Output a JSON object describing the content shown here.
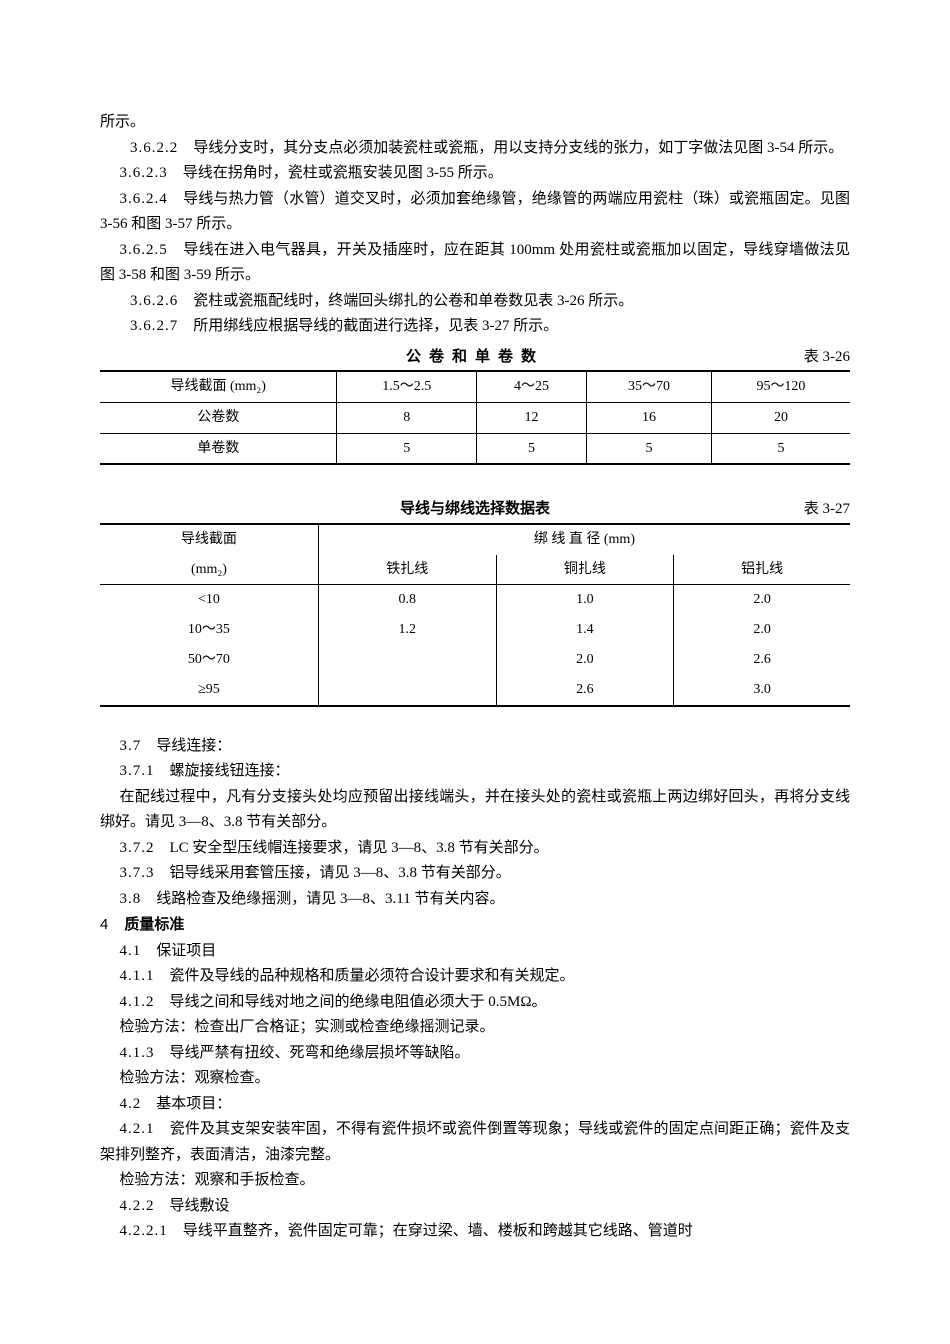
{
  "intro": {
    "p0": "所示。",
    "p1_num": "3.6.2.2",
    "p1": "　导线分支时，其分支点必须加装瓷柱或瓷瓶，用以支持分支线的张力，如丁字做法见图 3-54 所示。",
    "p2_num": "3.6.2.3",
    "p2": "　导线在拐角时，瓷柱或瓷瓶安装见图 3-55 所示。",
    "p3_num": "3.6.2.4",
    "p3": "　导线与热力管（水管）道交叉时，必须加套绝缘管，绝缘管的两端应用瓷柱（珠）或瓷瓶固定。见图 3-56 和图 3-57 所示。",
    "p4_num": "3.6.2.5",
    "p4": "　导线在进入电气器具，开关及插座时，应在距其 100mm 处用瓷柱或瓷瓶加以固定，导线穿墙做法见图 3-58 和图 3-59 所示。",
    "p5_num": "3.6.2.6",
    "p5": "　瓷柱或瓷瓶配线时，终端回头绑扎的公卷和单卷数见表 3-26 所示。",
    "p6_num": "3.6.2.7",
    "p6": "　所用绑线应根据导线的截面进行选择，见表 3-27 所示。"
  },
  "table1": {
    "title": "公卷和单卷数",
    "label": "表 3-26",
    "headers": [
      "导线截面 (mm₂)",
      "1.5～2.5",
      "4～25",
      "35～70",
      "95～120"
    ],
    "rows": [
      [
        "公卷数",
        "8",
        "12",
        "16",
        "20"
      ],
      [
        "单卷数",
        "5",
        "5",
        "5",
        "5"
      ]
    ]
  },
  "table2": {
    "title": "导线与绑线选择数据表",
    "label": "表 3-27",
    "h1": "导线截面",
    "h1b": "(mm₂)",
    "h2": "绑 线 直 径 (mm)",
    "sub_headers": [
      "铁扎线",
      "铜扎线",
      "铝扎线"
    ],
    "rows": [
      [
        "<10",
        "0.8",
        "1.0",
        "2.0"
      ],
      [
        "10～35",
        "1.2",
        "1.4",
        "2.0"
      ],
      [
        "50～70",
        "",
        "2.0",
        "2.6"
      ],
      [
        "≥95",
        "",
        "2.6",
        "3.0"
      ]
    ]
  },
  "sec37": {
    "p1_num": "3.7",
    "p1": "　导线连接：",
    "p2_num": "3.7.1",
    "p2": "　螺旋接线钮连接：",
    "p3": "在配线过程中，凡有分支接头处均应预留出接线端头，并在接头处的瓷柱或瓷瓶上两边绑好回头，再将分支线绑好。请见 3―8、3.8 节有关部分。",
    "p4_num": "3.7.2",
    "p4": "　LC 安全型压线帽连接要求，请见 3―8、3.8 节有关部分。",
    "p5_num": "3.7.3",
    "p5": "　铝导线采用套管压接，请见 3―8、3.8 节有关部分。",
    "p6_num": "3.8",
    "p6": "　线路检查及绝缘摇测，请见 3―8、3.11 节有关内容。"
  },
  "sec4": {
    "h_num": "4",
    "h": "质量标准",
    "p1_num": "4.1",
    "p1": "　保证项目",
    "p2_num": "4.1.1",
    "p2": "　瓷件及导线的品种规格和质量必须符合设计要求和有关规定。",
    "p3_num": "4.1.2",
    "p3": "　导线之间和导线对地之间的绝缘电阻值必须大于 0.5MΩ。",
    "p4": "检验方法：检查出厂合格证；实测或检查绝缘摇测记录。",
    "p5_num": "4.1.3",
    "p5": "　导线严禁有扭绞、死弯和绝缘层损坏等缺陷。",
    "p6": "检验方法：观察检查。",
    "p7_num": "4.2",
    "p7": "　基本项目：",
    "p8_num": "4.2.1",
    "p8": "　瓷件及其支架安装牢固，不得有瓷件损坏或瓷件倒置等现象；导线或瓷件的固定点间距正确；瓷件及支架排列整齐，表面清洁，油漆完整。",
    "p9": "检验方法：观察和手扳检查。",
    "p10_num": "4.2.2",
    "p10": "　导线敷设",
    "p11_num": "4.2.2.1",
    "p11": "　导线平直整齐，瓷件固定可靠；在穿过梁、墙、楼板和跨越其它线路、管道时"
  }
}
